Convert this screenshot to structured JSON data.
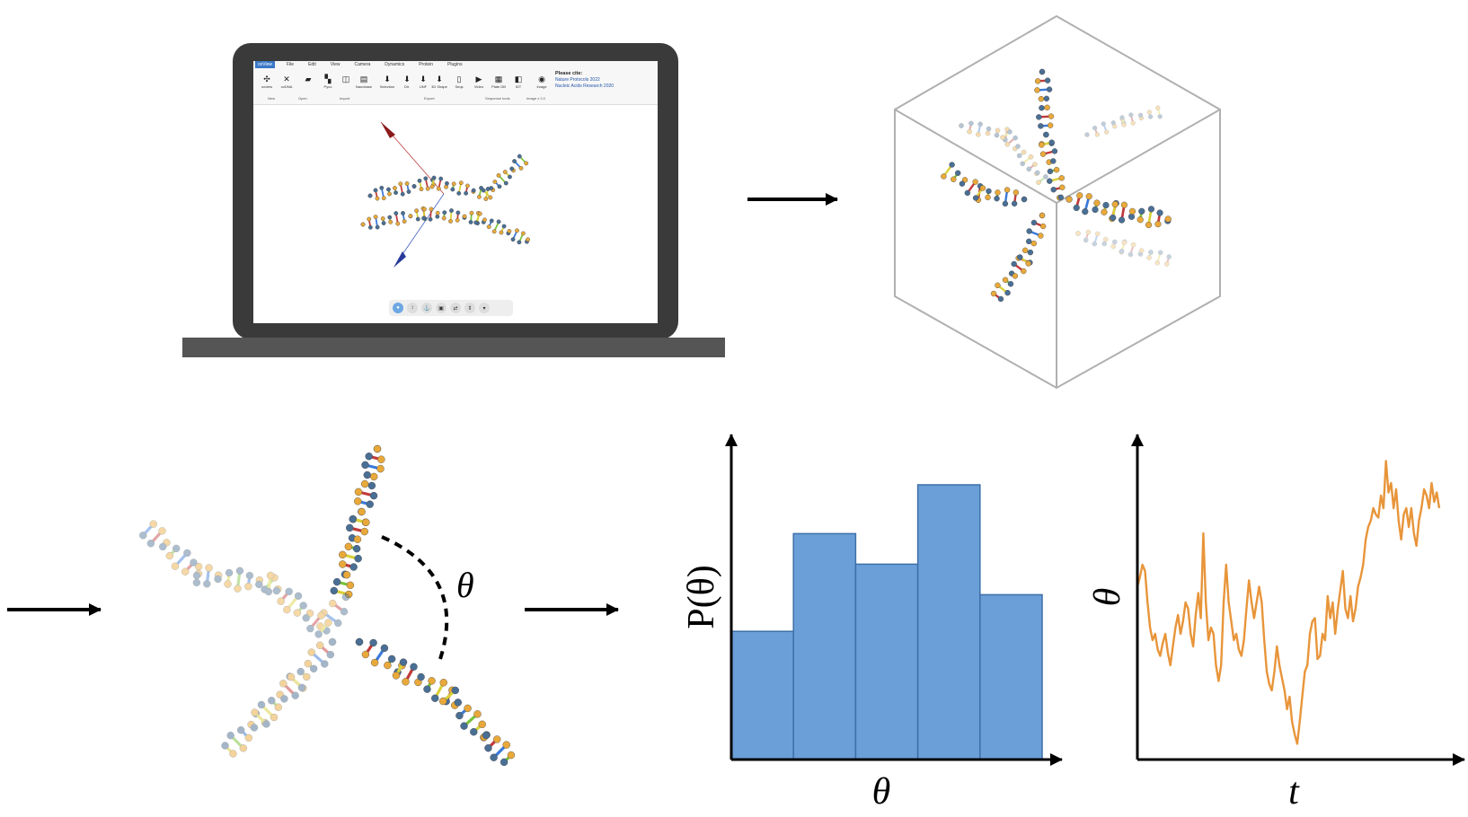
{
  "app": {
    "menu_tabs": [
      "oxView",
      "File",
      "Edit",
      "View",
      "Camera",
      "Dynamics",
      "Protein",
      "Plugins"
    ],
    "tools": [
      {
        "label": "oxview",
        "icon": "oxview-icon"
      },
      {
        "label": "oxDNA",
        "icon": "oxdna-icon"
      },
      {
        "label": "",
        "icon": "open-folder-icon"
      },
      {
        "label": "Pyco",
        "icon": "pyco-icon"
      },
      {
        "label": "",
        "icon": "pdb-icon"
      },
      {
        "label": "Nanobase",
        "icon": "nanobase-icon"
      },
      {
        "label": "Selection",
        "icon": "download-icon"
      },
      {
        "label": "Dir.",
        "icon": "download-icon"
      },
      {
        "label": "UNF",
        "icon": "download-icon"
      },
      {
        "label": "3D Shape",
        "icon": "download-icon"
      },
      {
        "label": "Seqs",
        "icon": "file-icon"
      },
      {
        "label": "Video",
        "icon": "video-icon"
      },
      {
        "label": "Plate DB",
        "icon": "plate-icon"
      },
      {
        "label": "IDT",
        "icon": "idt-icon"
      },
      {
        "label": "Image",
        "icon": "camera-icon"
      }
    ],
    "groups": [
      "New",
      "Open",
      "Import",
      "Export",
      "Sequence tools",
      "Image x 2.0"
    ],
    "cite_heading": "Please cite:",
    "citations": [
      "Nature Protocols 2022",
      "Nucleic Acids Research 2020"
    ],
    "view_controls": [
      "camera-icon",
      "arrows-icon",
      "fix-icon",
      "bricks-icon",
      "shuffle-icon",
      "updown-icon",
      "dropdown-icon"
    ]
  },
  "angle_label": "θ",
  "histogram": {
    "ylabel": "P(θ)",
    "xlabel": "θ",
    "bar_color": "#6a9fd8",
    "edge_color": "#3d6fa8"
  },
  "timeseries": {
    "ylabel": "θ",
    "xlabel": "t",
    "line_color": "#e8953a"
  },
  "chart_data": [
    {
      "type": "bar",
      "categories": [
        "",
        "",
        "",
        "",
        ""
      ],
      "values": [
        0.21,
        0.37,
        0.32,
        0.45,
        0.27
      ],
      "title": "",
      "xlabel": "θ",
      "ylabel": "P(θ)",
      "ylim": [
        0,
        0.5
      ]
    },
    {
      "type": "line",
      "title": "",
      "xlabel": "t",
      "ylabel": "θ",
      "ylim": [
        0,
        1
      ],
      "x": [
        0,
        1,
        2,
        3,
        4,
        5,
        6,
        7,
        8,
        9,
        10,
        11,
        12,
        13,
        14,
        15,
        16,
        17,
        18,
        19,
        20,
        21,
        22,
        23,
        24,
        25,
        26,
        27,
        28,
        29,
        30,
        31,
        32,
        33,
        34,
        35,
        36,
        37,
        38,
        39,
        40,
        41,
        42,
        43,
        44,
        45,
        46,
        47,
        48,
        49,
        50,
        51,
        52,
        53,
        54,
        55,
        56,
        57,
        58,
        59,
        60,
        61,
        62,
        63,
        64,
        65,
        66,
        67,
        68,
        69,
        70,
        71,
        72,
        73,
        74,
        75,
        76,
        77,
        78,
        79,
        80,
        81,
        82,
        83,
        84,
        85,
        86,
        87,
        88,
        89,
        90,
        91,
        92,
        93,
        94,
        95,
        96,
        97,
        98,
        99,
        100,
        101,
        102,
        103,
        104,
        105,
        106,
        107,
        108,
        109,
        110,
        111,
        112,
        113,
        114,
        115,
        116,
        117,
        118,
        119
      ],
      "series": [
        {
          "name": "",
          "values": [
            0.55,
            0.58,
            0.62,
            0.6,
            0.5,
            0.42,
            0.38,
            0.4,
            0.35,
            0.33,
            0.37,
            0.4,
            0.34,
            0.3,
            0.36,
            0.42,
            0.46,
            0.4,
            0.44,
            0.5,
            0.48,
            0.4,
            0.36,
            0.46,
            0.53,
            0.45,
            0.72,
            0.5,
            0.38,
            0.42,
            0.4,
            0.3,
            0.25,
            0.3,
            0.5,
            0.62,
            0.5,
            0.44,
            0.38,
            0.4,
            0.35,
            0.33,
            0.38,
            0.48,
            0.57,
            0.5,
            0.45,
            0.5,
            0.55,
            0.5,
            0.38,
            0.28,
            0.24,
            0.22,
            0.28,
            0.36,
            0.3,
            0.26,
            0.22,
            0.16,
            0.2,
            0.12,
            0.08,
            0.05,
            0.12,
            0.2,
            0.28,
            0.3,
            0.4,
            0.44,
            0.45,
            0.32,
            0.33,
            0.4,
            0.38,
            0.52,
            0.45,
            0.5,
            0.4,
            0.48,
            0.54,
            0.6,
            0.48,
            0.45,
            0.52,
            0.44,
            0.48,
            0.55,
            0.58,
            0.62,
            0.7,
            0.74,
            0.76,
            0.8,
            0.78,
            0.77,
            0.84,
            0.8,
            0.95,
            0.85,
            0.88,
            0.8,
            0.86,
            0.76,
            0.7,
            0.78,
            0.8,
            0.74,
            0.8,
            0.72,
            0.68,
            0.76,
            0.8,
            0.86,
            0.84,
            0.8,
            0.88,
            0.82,
            0.85,
            0.8
          ]
        }
      ]
    }
  ]
}
